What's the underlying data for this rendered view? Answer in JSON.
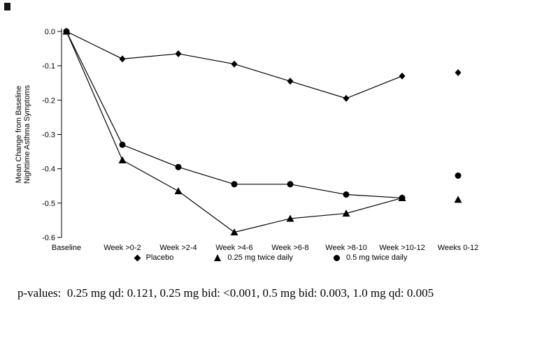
{
  "chart_data": {
    "type": "line",
    "title": "",
    "ylabel": "Mean Change from Baseline\nNighttime Asthma Symptoms",
    "xlabel": "",
    "categories": [
      "Baseline",
      "Week >0-2",
      "Week >2-4",
      "Week >4-6",
      "Week >6-8",
      "Week >8-10",
      "Week >10-12",
      "Weeks 0-12"
    ],
    "ylim": [
      -0.6,
      0.0
    ],
    "yticks": [
      0.0,
      -0.1,
      -0.2,
      -0.3,
      -0.4,
      -0.5,
      -0.6
    ],
    "grid": false,
    "legend_position": "bottom",
    "last_point_detached": true,
    "series": [
      {
        "name": "Placebo",
        "marker": "diamond",
        "values": [
          0.0,
          -0.08,
          -0.065,
          -0.095,
          -0.145,
          -0.195,
          -0.13,
          -0.12
        ]
      },
      {
        "name": "0.25 mg twice daily",
        "marker": "triangle",
        "values": [
          0.0,
          -0.375,
          -0.465,
          -0.585,
          -0.545,
          -0.53,
          -0.485,
          -0.49
        ]
      },
      {
        "name": "0.5 mg twice daily",
        "marker": "circle",
        "values": [
          0.0,
          -0.33,
          -0.395,
          -0.445,
          -0.445,
          -0.475,
          -0.485,
          -0.42
        ]
      }
    ]
  },
  "footnote": {
    "text": "p-values:  0.25 mg qd: 0.121, 0.25 mg bid: <0.001, 0.5 mg bid: 0.003, 1.0 mg qd: 0.005"
  }
}
